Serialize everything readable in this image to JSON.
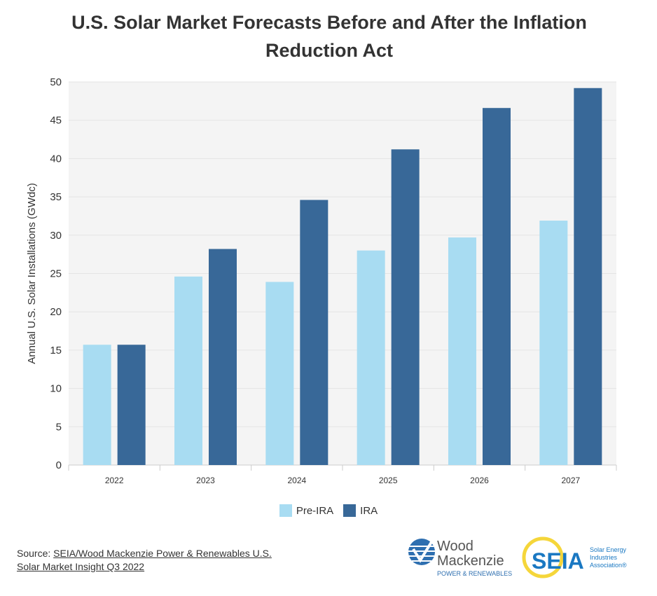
{
  "chart_data": {
    "type": "bar",
    "title": "U.S. Solar Market Forecasts Before and After the Inflation Reduction Act",
    "xlabel": "",
    "ylabel": "Annual U.S. Solar Installations (GWdc)",
    "ylim": [
      0,
      50
    ],
    "yticks": [
      0,
      5,
      10,
      15,
      20,
      25,
      30,
      35,
      40,
      45,
      50
    ],
    "categories": [
      "2022",
      "2023",
      "2024",
      "2025",
      "2026",
      "2027"
    ],
    "series": [
      {
        "name": "Pre-IRA",
        "color": "#a8dcf2",
        "values": [
          15.7,
          24.6,
          23.9,
          28.0,
          29.7,
          31.9
        ]
      },
      {
        "name": "IRA",
        "color": "#386898",
        "values": [
          15.7,
          28.2,
          34.6,
          41.2,
          46.6,
          49.2
        ]
      }
    ],
    "grid": true,
    "legend": "bottom-center"
  },
  "source": {
    "prefix": "Source: ",
    "link_text": "SEIA/Wood Mackenzie Power & Renewables U.S. Solar Market Insight Q3 2022"
  },
  "logos": {
    "wood_mackenzie": {
      "line1": "Wood",
      "line2": "Mackenzie",
      "tagline": "POWER & RENEWABLES"
    },
    "seia": {
      "mark": "SEIA",
      "line1": "Solar Energy",
      "line2": "Industries",
      "line3": "Association®"
    }
  }
}
